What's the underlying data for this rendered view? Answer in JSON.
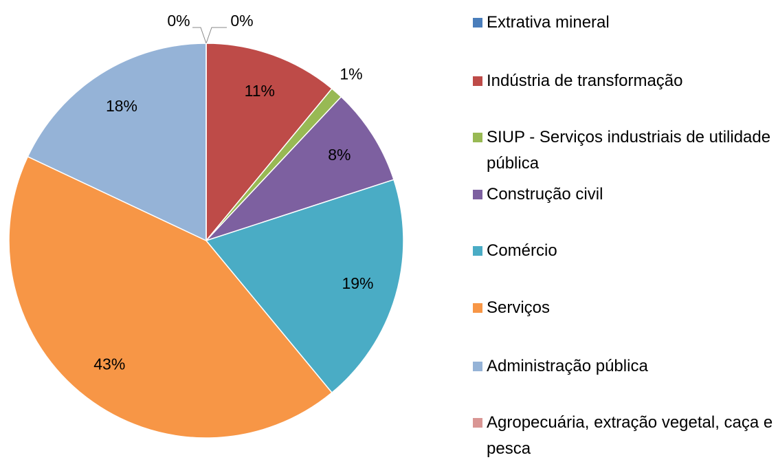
{
  "chart_data": {
    "type": "pie",
    "categories": [
      "Extrativa mineral",
      "Indústria de transformação",
      "SIUP - Serviços industriais de utilidade pública",
      "Construção civil",
      "Comércio",
      "Serviços",
      "Administração pública",
      "Agropecuária, extração vegetal, caça e pesca"
    ],
    "values": [
      0,
      11,
      1,
      8,
      19,
      43,
      18,
      0
    ],
    "value_labels": [
      "0%",
      "11%",
      "1%",
      "8%",
      "19%",
      "43%",
      "18%",
      "0%"
    ],
    "colors": [
      "#4a7ebb",
      "#be4b48",
      "#98b954",
      "#7d60a0",
      "#4aacc5",
      "#f79646",
      "#95b3d7",
      "#d99694"
    ]
  }
}
